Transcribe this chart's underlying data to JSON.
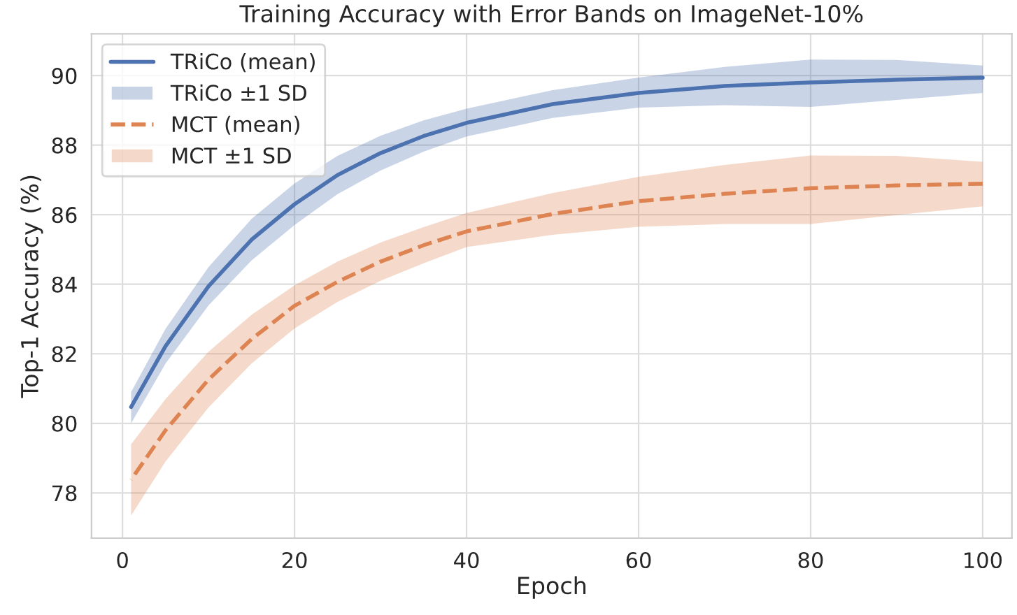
{
  "chart_data": {
    "type": "line",
    "title": "Training Accuracy with Error Bands on ImageNet-10%",
    "xlabel": "Epoch",
    "ylabel": "Top-1 Accuracy (%)",
    "x": [
      1,
      5,
      10,
      15,
      20,
      25,
      30,
      35,
      40,
      50,
      60,
      70,
      80,
      90,
      100
    ],
    "series": [
      {
        "name": "TRiCo (mean)",
        "color": "#4c72b0",
        "line_style": "solid",
        "values": [
          80.47,
          82.22,
          83.94,
          85.28,
          86.3,
          87.14,
          87.77,
          88.26,
          88.64,
          89.18,
          89.5,
          89.7,
          89.8,
          89.88,
          89.94
        ],
        "lower": [
          80.0,
          81.72,
          83.39,
          84.68,
          85.7,
          86.59,
          87.27,
          87.81,
          88.25,
          88.78,
          89.08,
          89.15,
          89.1,
          89.3,
          89.5
        ],
        "upper": [
          80.9,
          82.72,
          84.49,
          85.88,
          86.9,
          87.69,
          88.27,
          88.71,
          89.05,
          89.58,
          89.94,
          90.25,
          90.46,
          90.45,
          90.29
        ]
      },
      {
        "name": "MCT (mean)",
        "color": "#dd8452",
        "line_style": "dashed",
        "values": [
          78.38,
          79.8,
          81.26,
          82.42,
          83.38,
          84.07,
          84.65,
          85.12,
          85.52,
          86.02,
          86.39,
          86.6,
          86.76,
          86.84,
          86.89
        ],
        "lower": [
          77.35,
          78.9,
          80.46,
          81.72,
          82.73,
          83.49,
          84.1,
          84.6,
          85.07,
          85.42,
          85.65,
          85.73,
          85.73,
          85.99,
          86.24
        ],
        "upper": [
          79.4,
          80.7,
          82.06,
          83.12,
          83.97,
          84.65,
          85.2,
          85.64,
          86.05,
          86.62,
          87.09,
          87.43,
          87.7,
          87.69,
          87.52
        ]
      }
    ],
    "annotations": [
      "TRiCo ±1 SD",
      "MCT ±1 SD"
    ],
    "xlim": [
      -3.6,
      103.4
    ],
    "ylim": [
      76.7,
      91.2
    ],
    "xticks": [
      0,
      20,
      40,
      60,
      80,
      100
    ],
    "yticks": [
      78,
      80,
      82,
      84,
      86,
      88,
      90
    ],
    "grid": true,
    "legend": "top left",
    "marker": "none"
  }
}
